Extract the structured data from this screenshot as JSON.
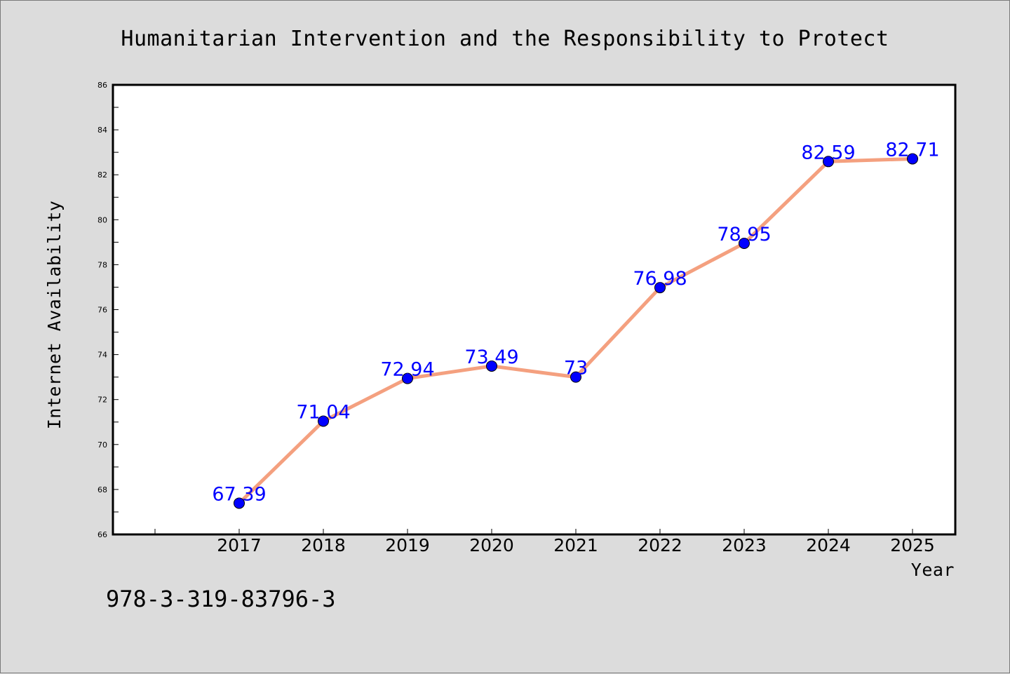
{
  "chart_data": {
    "type": "line",
    "title": "Humanitarian Intervention and the Responsibility to Protect",
    "xlabel": "Year",
    "ylabel": "Internet Availability",
    "categories": [
      "2017",
      "2018",
      "2019",
      "2020",
      "2021",
      "2022",
      "2023",
      "2024",
      "2025"
    ],
    "series": [
      {
        "values": [
          67.39,
          71.04,
          72.94,
          73.49,
          73,
          76.98,
          78.95,
          82.59,
          82.71
        ],
        "labels": [
          "67.39",
          "71.04",
          "72.94",
          "73.49",
          "73",
          "76.98",
          "78.95",
          "82.59",
          "82.71"
        ],
        "line_color": "#f4a07f",
        "marker_color": "#0000ff"
      }
    ],
    "ylim": [
      66,
      86
    ],
    "y_ticks": [
      "66",
      "68",
      "70",
      "72",
      "74",
      "76",
      "78",
      "80",
      "82",
      "84",
      "86"
    ],
    "grid": false,
    "legend": "none"
  },
  "footer_text": "978-3-319-83796-3",
  "colors": {
    "background": "#dcdcdc",
    "plot_background": "#ffffff"
  }
}
